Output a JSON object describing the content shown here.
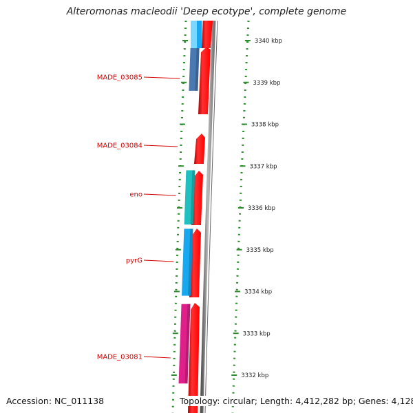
{
  "title": "Alteromonas macleodii 'Deep ecotype', complete genome",
  "accession": "Accession: NC_011138",
  "topology": "Topology: circular; Length: 4,412,282 bp; Genes: 4,128",
  "ticks": [
    {
      "label": "3340 kbp",
      "kbp": 3340
    },
    {
      "label": "3339 kbp",
      "kbp": 3339
    },
    {
      "label": "3338 kbp",
      "kbp": 3338
    },
    {
      "label": "3337 kbp",
      "kbp": 3337
    },
    {
      "label": "3336 kbp",
      "kbp": 3336
    },
    {
      "label": "3335 kbp",
      "kbp": 3335
    },
    {
      "label": "3334 kbp",
      "kbp": 3334
    },
    {
      "label": "3333 kbp",
      "kbp": 3333
    },
    {
      "label": "3332 kbp",
      "kbp": 3332
    }
  ],
  "genes": [
    {
      "name": "MADE_03085",
      "cog_color": "#4a78b0",
      "start_kbp": 3338.8,
      "end_kbp": 3339.9
    },
    {
      "name": "MADE_03084",
      "cog_color": null,
      "start_kbp": 3337.0,
      "end_kbp": 3337.7
    },
    {
      "name": "eno",
      "cog_color": "#20c0c0",
      "start_kbp": 3335.6,
      "end_kbp": 3336.9
    },
    {
      "name": "pyrG",
      "cog_color": "#19a8f0",
      "start_kbp": 3333.9,
      "end_kbp": 3335.5
    },
    {
      "name": "MADE_03081",
      "cog_color": "#e0208a",
      "start_kbp": 3331.8,
      "end_kbp": 3333.7
    }
  ],
  "colors": {
    "cds_forward": "#ff0000",
    "tick_green": "#2e8b2e",
    "backbone": "#888888",
    "label_red": "#d40000",
    "top_cog_light": "#7ad8ff",
    "top_cog_pale": "#ffb8b8"
  }
}
